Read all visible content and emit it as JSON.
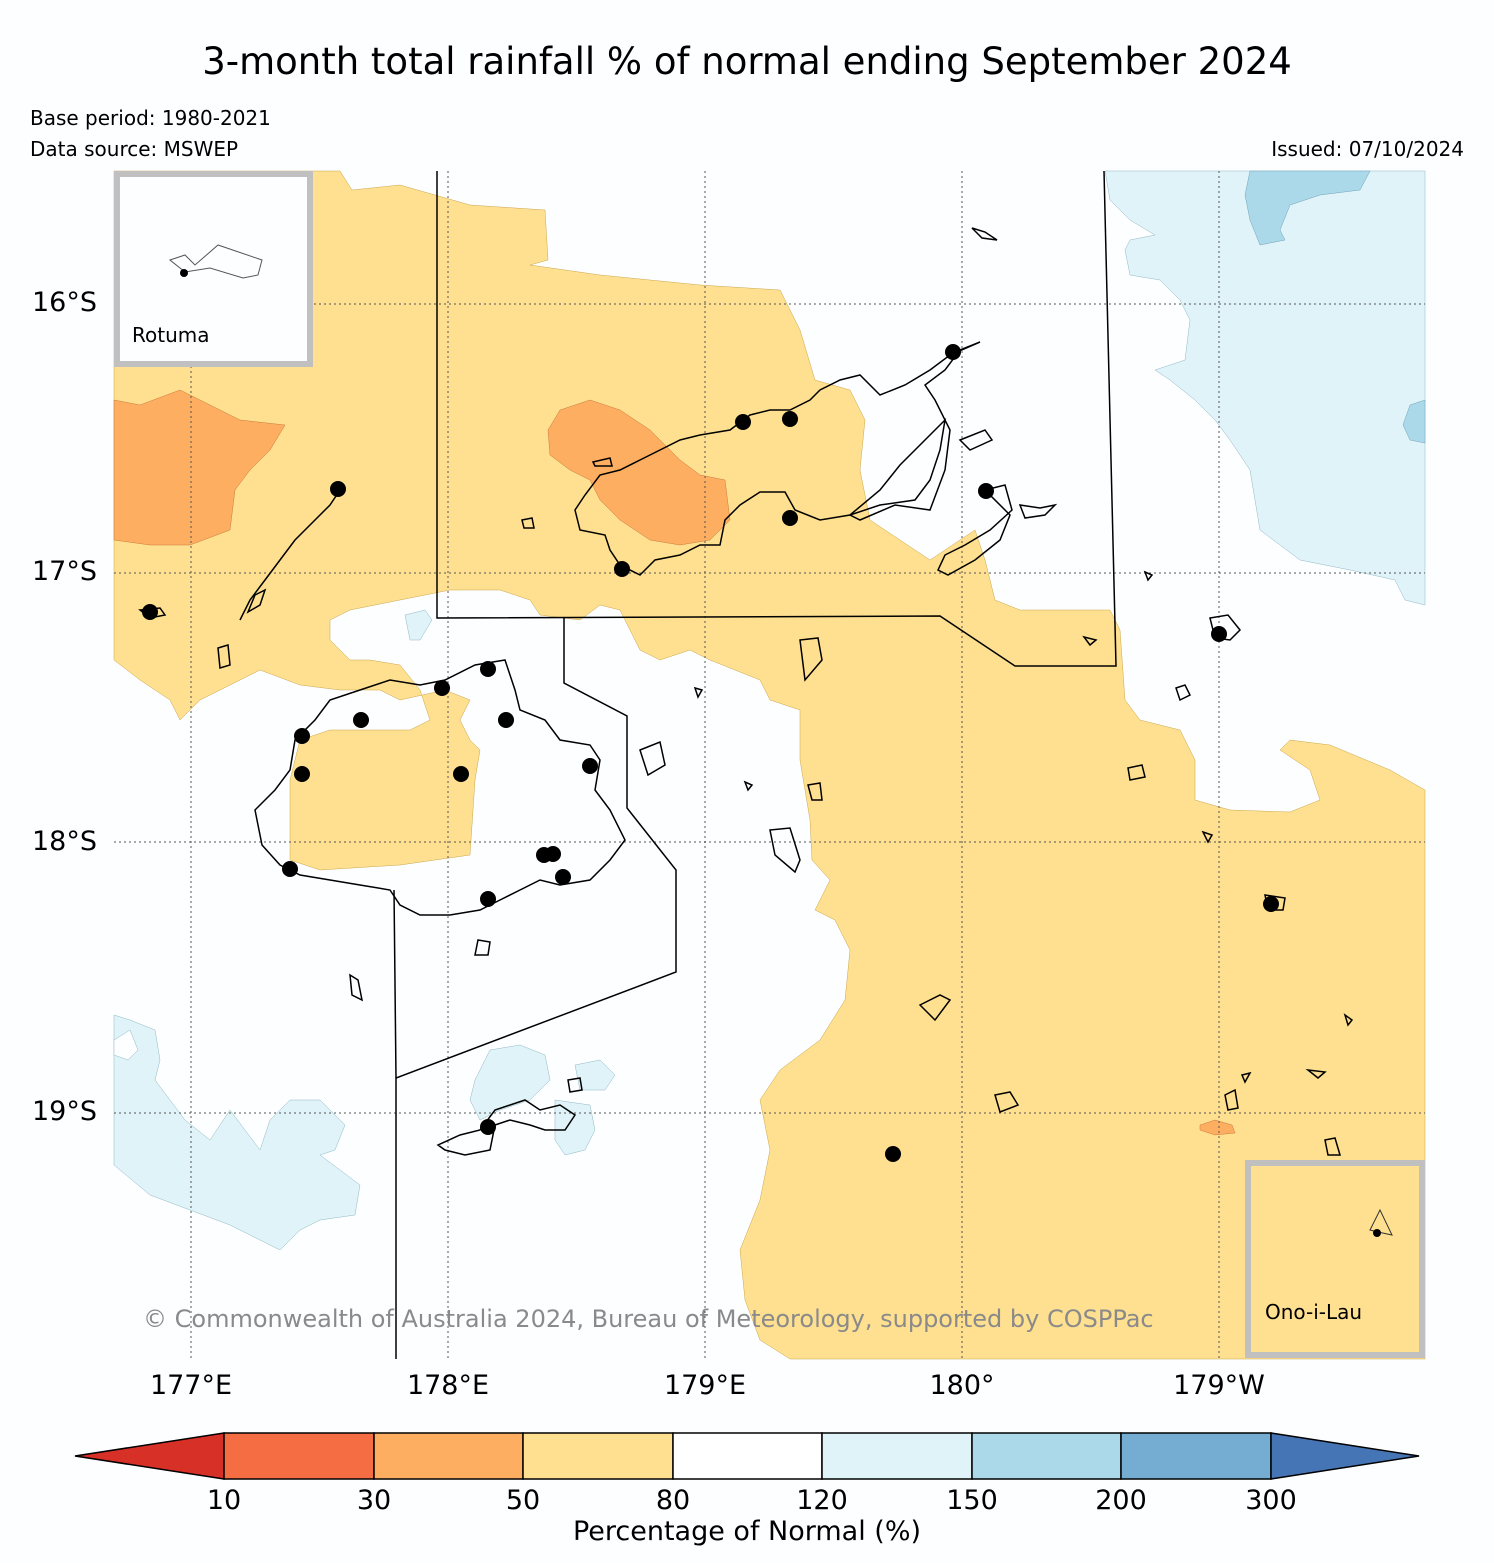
{
  "title": "3-month total rainfall % of normal ending September 2024",
  "meta": {
    "base_period": "Base period: 1980-2021",
    "data_source": "Data source: MSWEP",
    "issued": "Issued: 07/10/2024"
  },
  "axes": {
    "latitudes": [
      "16°S",
      "17°S",
      "18°S",
      "19°S"
    ],
    "longitudes": [
      "177°E",
      "178°E",
      "179°E",
      "180°",
      "179°W"
    ]
  },
  "insets": {
    "rotuma": "Rotuma",
    "ono_i_lau": "Ono-i-Lau"
  },
  "copyright": "© Commonwealth of Australia 2024, Bureau of Meteorology, supported by COSPPac",
  "colorbar": {
    "title": "Percentage of Normal (%)",
    "ticks": [
      "10",
      "30",
      "50",
      "80",
      "120",
      "150",
      "200",
      "300"
    ],
    "colors": [
      "#d73027",
      "#f46d43",
      "#fdae61",
      "#fee090",
      "#ffffff",
      "#e0f3f8",
      "#abd9e9",
      "#74add1",
      "#4575b4"
    ]
  },
  "legend_colors": {
    "lt30": "#f46d43",
    "p30_50": "#fdae61",
    "p50_80": "#fee090",
    "p120_150": "#e0f3f8",
    "p150_200": "#abd9e9",
    "station": "#000000"
  }
}
